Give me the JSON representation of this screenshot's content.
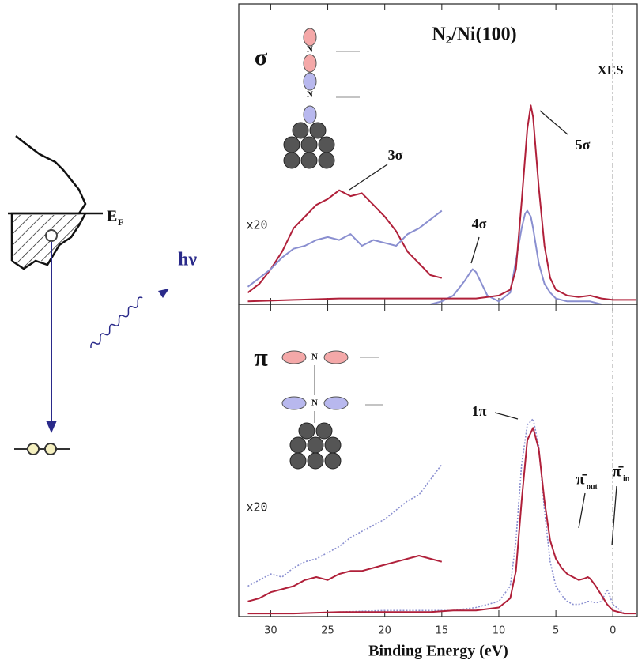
{
  "schematic": {
    "fermi_label": "E",
    "fermi_sub": "F",
    "photon": "hν",
    "atom_label": "N"
  },
  "chart_data": [
    {
      "type": "line",
      "xlim": [
        32.8,
        -2.2
      ],
      "xticks": [
        30,
        25,
        20,
        15,
        10,
        5,
        0
      ],
      "ylim": [
        0,
        100
      ],
      "vline": 0,
      "annotations": [
        {
          "text": "N₂/Ni(100)"
        },
        {
          "text": "σ"
        },
        {
          "text": "XES"
        },
        {
          "text": "5σ"
        },
        {
          "text": "3σ"
        },
        {
          "text": "4σ"
        },
        {
          "text": "x20"
        }
      ],
      "series": [
        {
          "color": "#b0203a",
          "style": "solid",
          "x": [
            32,
            31,
            30,
            29,
            28,
            27,
            26,
            25,
            24,
            23,
            22,
            21,
            20,
            19,
            18,
            17,
            16,
            15
          ],
          "values": [
            4,
            7,
            12,
            18,
            26,
            30,
            34,
            36,
            39,
            37,
            38,
            34,
            30,
            25,
            18,
            14,
            10,
            9
          ]
        },
        {
          "color": "#8a8fd0",
          "style": "solid",
          "x": [
            32,
            31,
            30,
            29,
            28,
            27,
            26,
            25,
            24,
            23,
            22,
            21,
            20,
            19,
            18,
            17,
            16,
            15
          ],
          "values": [
            6,
            9,
            12,
            16,
            19,
            20,
            22,
            23,
            22,
            24,
            20,
            22,
            21,
            20,
            24,
            26,
            29,
            32
          ]
        },
        {
          "color": "#8a8fd0",
          "style": "solid",
          "x": [
            16,
            15,
            14,
            13,
            12.5,
            12.3,
            12,
            11.5,
            11,
            10,
            9,
            8.5,
            8,
            7.7,
            7.5,
            7.2,
            7,
            6.5,
            6,
            5.5,
            5,
            4,
            3,
            2,
            1
          ],
          "values": [
            0,
            1,
            3,
            8,
            11,
            12,
            11,
            7,
            3,
            1,
            4,
            15,
            26,
            31,
            32,
            30,
            26,
            14,
            7,
            4,
            2,
            1,
            1,
            1,
            0
          ]
        },
        {
          "color": "#b0203a",
          "style": "solid",
          "x": [
            32,
            28,
            24,
            20,
            16,
            14,
            12,
            10,
            9,
            8.5,
            8,
            7.5,
            7.2,
            7,
            6.5,
            6,
            5.5,
            5,
            4,
            3,
            2,
            1,
            0,
            -1,
            -2
          ],
          "values": [
            1,
            1.5,
            2,
            2,
            2,
            2,
            2,
            3,
            5,
            12,
            35,
            60,
            68,
            64,
            40,
            20,
            9,
            5,
            3,
            2.5,
            3,
            2,
            1.5,
            1.5,
            1.5
          ]
        }
      ]
    },
    {
      "type": "line",
      "xlim": [
        32.8,
        -2.2
      ],
      "xticks": [
        30,
        25,
        20,
        15,
        10,
        5,
        0
      ],
      "ylim": [
        0,
        100
      ],
      "vline": 0,
      "xlabel": "Binding Energy (eV)",
      "annotations": [
        {
          "text": "π"
        },
        {
          "text": "1π"
        },
        {
          "text": "π̄",
          "sub": "out"
        },
        {
          "text": "π̄",
          "sub": "in"
        },
        {
          "text": "x20"
        }
      ],
      "series": [
        {
          "color": "#8a8fd0",
          "style": "dotted",
          "x": [
            32,
            31,
            30,
            29,
            28,
            27,
            26,
            25,
            24,
            23,
            22,
            21,
            20,
            19,
            18,
            17,
            16,
            15
          ],
          "values": [
            10,
            12,
            14,
            13,
            16,
            18,
            19,
            21,
            23,
            26,
            28,
            30,
            32,
            35,
            38,
            40,
            45,
            50
          ]
        },
        {
          "color": "#b0203a",
          "style": "solid",
          "x": [
            32,
            31,
            30,
            29,
            28,
            27,
            26,
            25,
            24,
            23,
            22,
            21,
            20,
            19,
            18,
            17,
            16,
            15
          ],
          "values": [
            5,
            6,
            8,
            9,
            10,
            12,
            13,
            12,
            14,
            15,
            15,
            16,
            17,
            18,
            19,
            20,
            19,
            18
          ]
        },
        {
          "color": "#8a8fd0",
          "style": "dotted",
          "x": [
            32,
            28,
            24,
            20,
            16,
            14,
            12,
            10,
            9,
            8.5,
            8,
            7.5,
            7,
            6.5,
            6,
            5.5,
            5,
            4.5,
            4,
            3.5,
            3,
            2.5,
            2.2,
            2,
            1.5,
            1,
            0.5,
            0,
            -1,
            -2
          ],
          "values": [
            1,
            1,
            1.5,
            2,
            2,
            2,
            3,
            5,
            10,
            25,
            50,
            63,
            65,
            56,
            35,
            18,
            10,
            7,
            5,
            4,
            4,
            4.5,
            5,
            5,
            4.5,
            5,
            9,
            4,
            1,
            1
          ]
        },
        {
          "color": "#b0203a",
          "style": "solid",
          "x": [
            32,
            28,
            24,
            20,
            16,
            14,
            12,
            10,
            9,
            8.5,
            8,
            7.5,
            7,
            6.5,
            6,
            5.5,
            5,
            4.5,
            4,
            3.5,
            3,
            2.5,
            2.2,
            2,
            1.5,
            1,
            0.5,
            0,
            -1,
            -2
          ],
          "values": [
            1,
            1,
            1.5,
            1.5,
            1.5,
            2,
            2,
            3,
            6,
            15,
            38,
            58,
            62,
            55,
            38,
            25,
            19,
            16,
            14,
            13,
            12,
            12.5,
            13,
            12.5,
            10,
            7,
            4,
            2,
            1,
            1
          ]
        }
      ]
    }
  ]
}
